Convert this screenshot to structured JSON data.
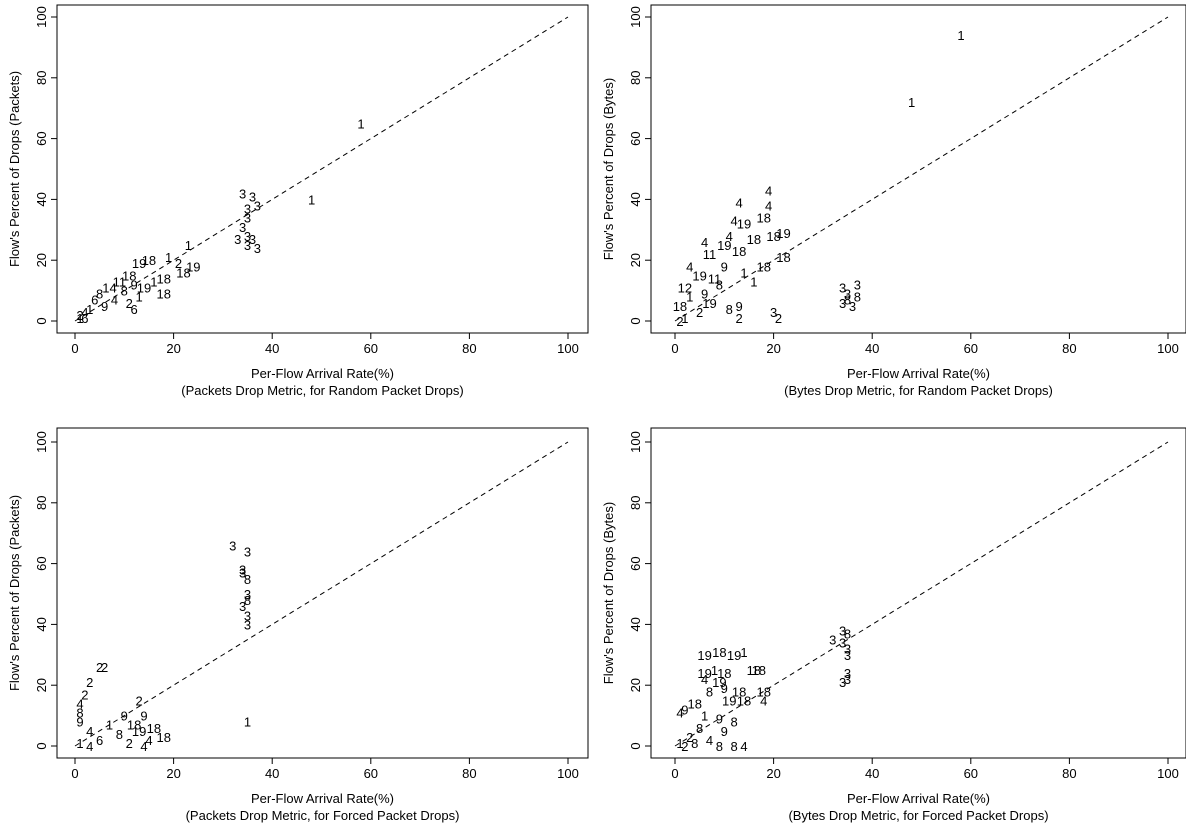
{
  "chart_data": [
    {
      "type": "scatter",
      "xlabel": "Per-Flow Arrival Rate(%)",
      "caption": "(Packets Drop Metric, for Random Packet Drops)",
      "ylabel": "Flow's Percent of Drops (Packets)",
      "xlim": [
        0,
        100
      ],
      "ylim": [
        0,
        100
      ],
      "xticks": [
        "0",
        "20",
        "40",
        "60",
        "80",
        "100"
      ],
      "yticks": [
        "0",
        "20",
        "40",
        "60",
        "80",
        "100"
      ],
      "reference_line": "y = x (dashed)",
      "points": [
        {
          "x": 58,
          "y": 65,
          "label": "1"
        },
        {
          "x": 48,
          "y": 40,
          "label": "1"
        },
        {
          "x": 23,
          "y": 25,
          "label": "1"
        },
        {
          "x": 34,
          "y": 42,
          "label": "3"
        },
        {
          "x": 36,
          "y": 41,
          "label": "3"
        },
        {
          "x": 37,
          "y": 38,
          "label": "3"
        },
        {
          "x": 35,
          "y": 37,
          "label": "3"
        },
        {
          "x": 35,
          "y": 34,
          "label": "3"
        },
        {
          "x": 34,
          "y": 31,
          "label": "3"
        },
        {
          "x": 35,
          "y": 28,
          "label": "3"
        },
        {
          "x": 33,
          "y": 27,
          "label": "3"
        },
        {
          "x": 36,
          "y": 27,
          "label": "3"
        },
        {
          "x": 35,
          "y": 25,
          "label": "3"
        },
        {
          "x": 37,
          "y": 24,
          "label": "3"
        },
        {
          "x": 15,
          "y": 20,
          "label": "18"
        },
        {
          "x": 19,
          "y": 21,
          "label": "1"
        },
        {
          "x": 21,
          "y": 19,
          "label": "2"
        },
        {
          "x": 24,
          "y": 18,
          "label": "19"
        },
        {
          "x": 22,
          "y": 16,
          "label": "18"
        },
        {
          "x": 18,
          "y": 14,
          "label": "18"
        },
        {
          "x": 13,
          "y": 19,
          "label": "19"
        },
        {
          "x": 11,
          "y": 15,
          "label": "18"
        },
        {
          "x": 9,
          "y": 13,
          "label": "11"
        },
        {
          "x": 7,
          "y": 11,
          "label": "14"
        },
        {
          "x": 5,
          "y": 9,
          "label": "8"
        },
        {
          "x": 4,
          "y": 7,
          "label": "6"
        },
        {
          "x": 12,
          "y": 12,
          "label": "9"
        },
        {
          "x": 10,
          "y": 10,
          "label": "8"
        },
        {
          "x": 14,
          "y": 11,
          "label": "19"
        },
        {
          "x": 18,
          "y": 9,
          "label": "18"
        },
        {
          "x": 13,
          "y": 8,
          "label": "1"
        },
        {
          "x": 8,
          "y": 7,
          "label": "4"
        },
        {
          "x": 11,
          "y": 6,
          "label": "2"
        },
        {
          "x": 6,
          "y": 5,
          "label": "9"
        },
        {
          "x": 3,
          "y": 4,
          "label": "1"
        },
        {
          "x": 2,
          "y": 3,
          "label": "4"
        },
        {
          "x": 1,
          "y": 2,
          "label": "2"
        },
        {
          "x": 1,
          "y": 1,
          "label": "1"
        },
        {
          "x": 2,
          "y": 1,
          "label": "6"
        },
        {
          "x": 12,
          "y": 4,
          "label": "6"
        },
        {
          "x": 16,
          "y": 13,
          "label": "1"
        }
      ]
    },
    {
      "type": "scatter",
      "xlabel": "Per-Flow Arrival Rate(%)",
      "caption": "(Bytes Drop Metric, for Random Packet Drops)",
      "ylabel": "Flow's Percent of Drops (Bytes)",
      "xlim": [
        0,
        100
      ],
      "ylim": [
        0,
        100
      ],
      "xticks": [
        "0",
        "20",
        "40",
        "60",
        "80",
        "100"
      ],
      "yticks": [
        "0",
        "20",
        "40",
        "60",
        "80",
        "100"
      ],
      "reference_line": "y = x (dashed)",
      "points": [
        {
          "x": 58,
          "y": 94,
          "label": "1"
        },
        {
          "x": 48,
          "y": 72,
          "label": "1"
        },
        {
          "x": 19,
          "y": 43,
          "label": "4"
        },
        {
          "x": 13,
          "y": 39,
          "label": "4"
        },
        {
          "x": 19,
          "y": 38,
          "label": "4"
        },
        {
          "x": 18,
          "y": 34,
          "label": "18"
        },
        {
          "x": 12,
          "y": 33,
          "label": "4"
        },
        {
          "x": 14,
          "y": 32,
          "label": "19"
        },
        {
          "x": 22,
          "y": 29,
          "label": "19"
        },
        {
          "x": 20,
          "y": 28,
          "label": "18"
        },
        {
          "x": 16,
          "y": 27,
          "label": "18"
        },
        {
          "x": 11,
          "y": 28,
          "label": "4"
        },
        {
          "x": 6,
          "y": 26,
          "label": "4"
        },
        {
          "x": 10,
          "y": 25,
          "label": "19"
        },
        {
          "x": 13,
          "y": 23,
          "label": "18"
        },
        {
          "x": 7,
          "y": 22,
          "label": "11"
        },
        {
          "x": 22,
          "y": 21,
          "label": "18"
        },
        {
          "x": 18,
          "y": 18,
          "label": "18"
        },
        {
          "x": 10,
          "y": 18,
          "label": "9"
        },
        {
          "x": 3,
          "y": 18,
          "label": "4"
        },
        {
          "x": 14,
          "y": 16,
          "label": "1"
        },
        {
          "x": 5,
          "y": 15,
          "label": "19"
        },
        {
          "x": 8,
          "y": 14,
          "label": "11"
        },
        {
          "x": 2,
          "y": 11,
          "label": "12"
        },
        {
          "x": 9,
          "y": 12,
          "label": "8"
        },
        {
          "x": 16,
          "y": 13,
          "label": "1"
        },
        {
          "x": 6,
          "y": 9,
          "label": "9"
        },
        {
          "x": 3,
          "y": 8,
          "label": "1"
        },
        {
          "x": 1,
          "y": 5,
          "label": "18"
        },
        {
          "x": 7,
          "y": 6,
          "label": "19"
        },
        {
          "x": 13,
          "y": 5,
          "label": "9"
        },
        {
          "x": 11,
          "y": 4,
          "label": "8"
        },
        {
          "x": 5,
          "y": 3,
          "label": "2"
        },
        {
          "x": 2,
          "y": 1,
          "label": "1"
        },
        {
          "x": 1,
          "y": 0,
          "label": "2"
        },
        {
          "x": 13,
          "y": 1,
          "label": "2"
        },
        {
          "x": 20,
          "y": 3,
          "label": "3"
        },
        {
          "x": 21,
          "y": 1,
          "label": "2"
        },
        {
          "x": 34,
          "y": 11,
          "label": "3"
        },
        {
          "x": 37,
          "y": 12,
          "label": "3"
        },
        {
          "x": 35,
          "y": 9,
          "label": "3"
        },
        {
          "x": 37,
          "y": 8,
          "label": "8"
        },
        {
          "x": 35,
          "y": 7,
          "label": "8"
        },
        {
          "x": 34,
          "y": 6,
          "label": "3"
        },
        {
          "x": 36,
          "y": 5,
          "label": "3"
        }
      ]
    },
    {
      "type": "scatter",
      "xlabel": "Per-Flow Arrival Rate(%)",
      "caption": "(Packets Drop Metric, for Forced Packet Drops)",
      "ylabel": "Flow's Percent of Drops (Packets)",
      "xlim": [
        0,
        100
      ],
      "ylim": [
        0,
        100
      ],
      "xticks": [
        "0",
        "20",
        "40",
        "60",
        "80",
        "100"
      ],
      "yticks": [
        "0",
        "20",
        "40",
        "60",
        "80",
        "100"
      ],
      "reference_line": "y = x (dashed)",
      "points": [
        {
          "x": 32,
          "y": 66,
          "label": "3"
        },
        {
          "x": 35,
          "y": 64,
          "label": "3"
        },
        {
          "x": 34,
          "y": 58,
          "label": "3"
        },
        {
          "x": 34,
          "y": 57,
          "label": "3"
        },
        {
          "x": 35,
          "y": 55,
          "label": "8"
        },
        {
          "x": 35,
          "y": 50,
          "label": "3"
        },
        {
          "x": 35,
          "y": 48,
          "label": "8"
        },
        {
          "x": 34,
          "y": 46,
          "label": "3"
        },
        {
          "x": 35,
          "y": 43,
          "label": "3"
        },
        {
          "x": 35,
          "y": 40,
          "label": "3"
        },
        {
          "x": 35,
          "y": 8,
          "label": "1"
        },
        {
          "x": 5,
          "y": 26,
          "label": "2"
        },
        {
          "x": 6,
          "y": 26,
          "label": "2"
        },
        {
          "x": 3,
          "y": 21,
          "label": "2"
        },
        {
          "x": 2,
          "y": 17,
          "label": "2"
        },
        {
          "x": 1,
          "y": 14,
          "label": "4"
        },
        {
          "x": 13,
          "y": 15,
          "label": "2"
        },
        {
          "x": 1,
          "y": 11,
          "label": "8"
        },
        {
          "x": 1,
          "y": 8,
          "label": "9"
        },
        {
          "x": 10,
          "y": 10,
          "label": "9"
        },
        {
          "x": 14,
          "y": 10,
          "label": "9"
        },
        {
          "x": 7,
          "y": 7,
          "label": "1"
        },
        {
          "x": 12,
          "y": 7,
          "label": "18"
        },
        {
          "x": 16,
          "y": 6,
          "label": "18"
        },
        {
          "x": 13,
          "y": 5,
          "label": "19"
        },
        {
          "x": 3,
          "y": 5,
          "label": "4"
        },
        {
          "x": 9,
          "y": 4,
          "label": "8"
        },
        {
          "x": 18,
          "y": 3,
          "label": "18"
        },
        {
          "x": 15,
          "y": 2,
          "label": "4"
        },
        {
          "x": 5,
          "y": 2,
          "label": "6"
        },
        {
          "x": 11,
          "y": 1,
          "label": "2"
        },
        {
          "x": 1,
          "y": 1,
          "label": "1"
        },
        {
          "x": 3,
          "y": 0,
          "label": "4"
        },
        {
          "x": 14,
          "y": 0,
          "label": "4"
        }
      ]
    },
    {
      "type": "scatter",
      "xlabel": "Per-Flow Arrival Rate(%)",
      "caption": "(Bytes Drop Metric, for Forced Packet Drops)",
      "ylabel": "Flow's Percent of Drops (Bytes)",
      "xlim": [
        0,
        100
      ],
      "ylim": [
        0,
        100
      ],
      "xticks": [
        "0",
        "20",
        "40",
        "60",
        "80",
        "100"
      ],
      "yticks": [
        "0",
        "20",
        "40",
        "60",
        "80",
        "100"
      ],
      "reference_line": "y = x (dashed)",
      "points": [
        {
          "x": 34,
          "y": 38,
          "label": "3"
        },
        {
          "x": 35,
          "y": 37,
          "label": "8"
        },
        {
          "x": 32,
          "y": 35,
          "label": "3"
        },
        {
          "x": 34,
          "y": 34,
          "label": "3"
        },
        {
          "x": 35,
          "y": 32,
          "label": "3"
        },
        {
          "x": 35,
          "y": 30,
          "label": "3"
        },
        {
          "x": 35,
          "y": 24,
          "label": "3"
        },
        {
          "x": 35,
          "y": 22,
          "label": "3"
        },
        {
          "x": 34,
          "y": 21,
          "label": "3"
        },
        {
          "x": 6,
          "y": 30,
          "label": "19"
        },
        {
          "x": 9,
          "y": 31,
          "label": "18"
        },
        {
          "x": 12,
          "y": 30,
          "label": "19"
        },
        {
          "x": 14,
          "y": 31,
          "label": "1"
        },
        {
          "x": 6,
          "y": 24,
          "label": "19"
        },
        {
          "x": 8,
          "y": 25,
          "label": "1"
        },
        {
          "x": 10,
          "y": 24,
          "label": "18"
        },
        {
          "x": 16,
          "y": 25,
          "label": "18"
        },
        {
          "x": 17,
          "y": 25,
          "label": "18"
        },
        {
          "x": 6,
          "y": 22,
          "label": "4"
        },
        {
          "x": 9,
          "y": 21,
          "label": "19"
        },
        {
          "x": 7,
          "y": 18,
          "label": "8"
        },
        {
          "x": 10,
          "y": 19,
          "label": "9"
        },
        {
          "x": 13,
          "y": 18,
          "label": "18"
        },
        {
          "x": 18,
          "y": 18,
          "label": "18"
        },
        {
          "x": 2,
          "y": 12,
          "label": "9"
        },
        {
          "x": 1,
          "y": 11,
          "label": "4"
        },
        {
          "x": 4,
          "y": 14,
          "label": "18"
        },
        {
          "x": 11,
          "y": 15,
          "label": "19"
        },
        {
          "x": 14,
          "y": 15,
          "label": "18"
        },
        {
          "x": 18,
          "y": 15,
          "label": "4"
        },
        {
          "x": 6,
          "y": 10,
          "label": "1"
        },
        {
          "x": 9,
          "y": 9,
          "label": "9"
        },
        {
          "x": 12,
          "y": 8,
          "label": "8"
        },
        {
          "x": 5,
          "y": 6,
          "label": "8"
        },
        {
          "x": 10,
          "y": 5,
          "label": "9"
        },
        {
          "x": 3,
          "y": 3,
          "label": "2"
        },
        {
          "x": 7,
          "y": 2,
          "label": "4"
        },
        {
          "x": 1,
          "y": 1,
          "label": "1"
        },
        {
          "x": 4,
          "y": 1,
          "label": "8"
        },
        {
          "x": 9,
          "y": 0,
          "label": "8"
        },
        {
          "x": 12,
          "y": 0,
          "label": "8"
        },
        {
          "x": 14,
          "y": 0,
          "label": "4"
        },
        {
          "x": 2,
          "y": 0,
          "label": "2"
        }
      ]
    }
  ]
}
